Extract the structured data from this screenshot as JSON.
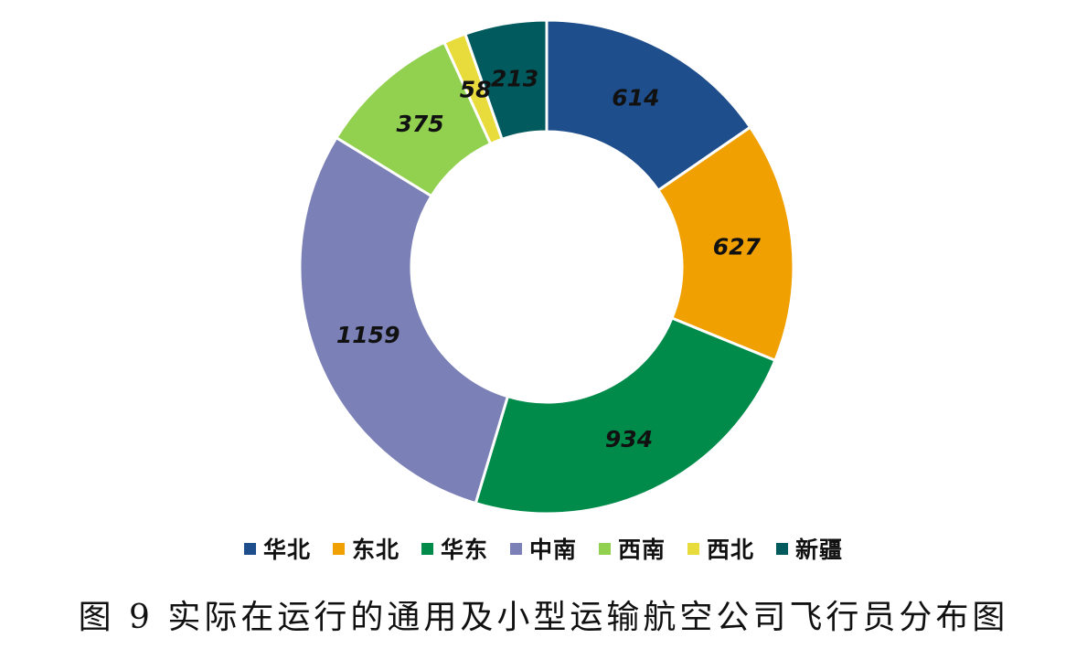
{
  "chart_data": {
    "type": "pie",
    "variant": "donut",
    "categories": [
      "华北",
      "东北",
      "华东",
      "中南",
      "西南",
      "西北",
      "新疆"
    ],
    "values": [
      614,
      627,
      934,
      1159,
      375,
      58,
      213
    ],
    "colors": [
      "#1F4E8C",
      "#F0A000",
      "#008B4A",
      "#7B80B6",
      "#92D050",
      "#E8DB3C",
      "#005A5E"
    ],
    "start_angle": "12 o'clock",
    "direction": "clockwise",
    "data_labels": true,
    "legend_position": "bottom"
  },
  "caption": "图 9  实际在运行的通用及小型运输航空公司飞行员分布图"
}
